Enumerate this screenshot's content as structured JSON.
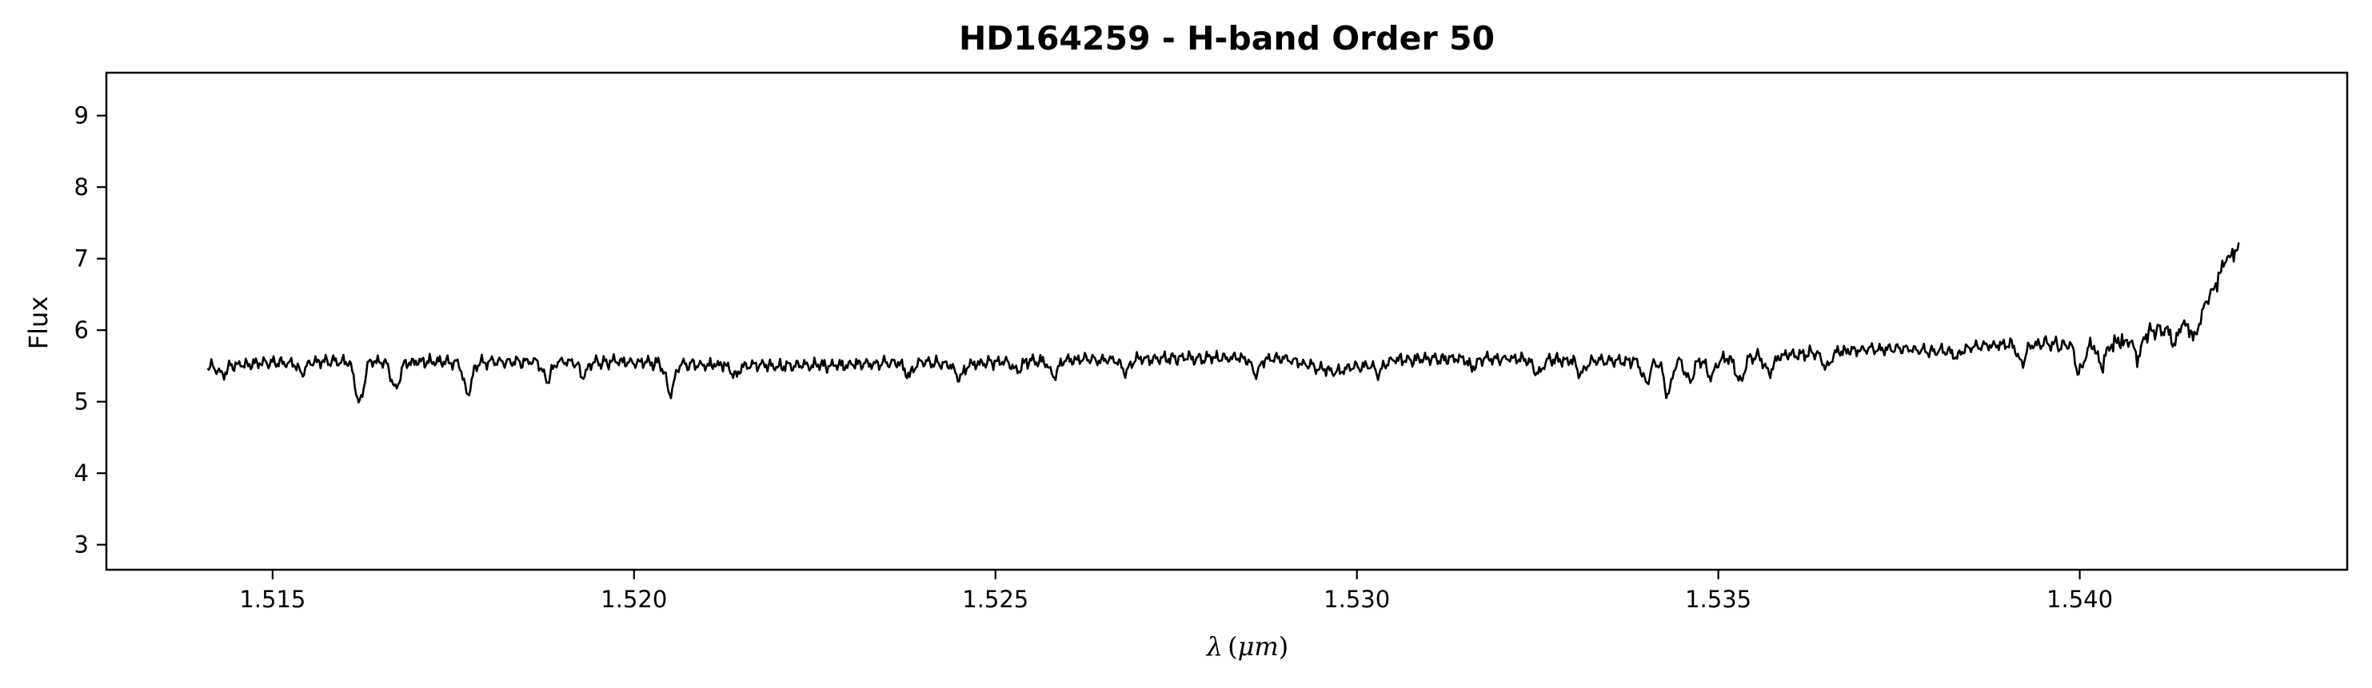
{
  "chart_data": {
    "type": "line",
    "title": "HD164259 - H-band Order 50",
    "xlabel": "λ (μm)",
    "xlabel_parts": {
      "symbol": "λ",
      "open": "(",
      "unit": "μm",
      "close": ")"
    },
    "ylabel": "Flux",
    "xlim": [
      1.5127,
      1.5437
    ],
    "ylim": [
      2.65,
      9.6
    ],
    "x_ticks": [
      1.515,
      1.52,
      1.525,
      1.53,
      1.535,
      1.54
    ],
    "x_tick_labels": [
      "1.515",
      "1.520",
      "1.525",
      "1.530",
      "1.535",
      "1.540"
    ],
    "y_ticks": [
      3,
      4,
      5,
      6,
      7,
      8,
      9
    ],
    "y_tick_labels": [
      "3",
      "4",
      "5",
      "6",
      "7",
      "8",
      "9"
    ],
    "grid": false,
    "line_color": "#000000",
    "series": [
      {
        "x_start": 1.5141,
        "x_end": 1.5422,
        "continuum": [
          [
            1.5141,
            5.48
          ],
          [
            1.515,
            5.55
          ],
          [
            1.516,
            5.56
          ],
          [
            1.517,
            5.56
          ],
          [
            1.518,
            5.55
          ],
          [
            1.519,
            5.56
          ],
          [
            1.52,
            5.55
          ],
          [
            1.521,
            5.52
          ],
          [
            1.522,
            5.5
          ],
          [
            1.523,
            5.52
          ],
          [
            1.524,
            5.56
          ],
          [
            1.5245,
            5.5
          ],
          [
            1.525,
            5.55
          ],
          [
            1.526,
            5.58
          ],
          [
            1.527,
            5.6
          ],
          [
            1.528,
            5.62
          ],
          [
            1.529,
            5.6
          ],
          [
            1.5297,
            5.42
          ],
          [
            1.5305,
            5.58
          ],
          [
            1.531,
            5.6
          ],
          [
            1.532,
            5.6
          ],
          [
            1.533,
            5.58
          ],
          [
            1.534,
            5.56
          ],
          [
            1.535,
            5.6
          ],
          [
            1.536,
            5.66
          ],
          [
            1.537,
            5.72
          ],
          [
            1.5375,
            5.75
          ],
          [
            1.538,
            5.7
          ],
          [
            1.5385,
            5.76
          ],
          [
            1.539,
            5.8
          ],
          [
            1.5395,
            5.8
          ],
          [
            1.54,
            5.8
          ],
          [
            1.5405,
            5.82
          ],
          [
            1.541,
            5.98
          ],
          [
            1.5415,
            6.15
          ],
          [
            1.5418,
            6.45
          ],
          [
            1.542,
            6.95
          ],
          [
            1.5422,
            7.15
          ]
        ],
        "absorption_lines": [
          [
            1.5143,
            0.12
          ],
          [
            1.5154,
            0.15
          ],
          [
            1.5162,
            0.6
          ],
          [
            1.5167,
            0.4
          ],
          [
            1.5177,
            0.45
          ],
          [
            1.5188,
            0.25
          ],
          [
            1.5193,
            0.2
          ],
          [
            1.5205,
            0.4
          ],
          [
            1.5214,
            0.15
          ],
          [
            1.5238,
            0.2
          ],
          [
            1.5245,
            0.18
          ],
          [
            1.5253,
            0.12
          ],
          [
            1.5258,
            0.22
          ],
          [
            1.5268,
            0.18
          ],
          [
            1.5286,
            0.22
          ],
          [
            1.5303,
            0.15
          ],
          [
            1.5316,
            0.12
          ],
          [
            1.5325,
            0.2
          ],
          [
            1.5331,
            0.2
          ],
          [
            1.534,
            0.28
          ],
          [
            1.5343,
            0.45
          ],
          [
            1.5346,
            0.3
          ],
          [
            1.5349,
            0.25
          ],
          [
            1.5353,
            0.35
          ],
          [
            1.5357,
            0.25
          ],
          [
            1.5365,
            0.2
          ],
          [
            1.5383,
            0.12
          ],
          [
            1.5392,
            0.25
          ],
          [
            1.54,
            0.4
          ],
          [
            1.5403,
            0.28
          ],
          [
            1.5408,
            0.3
          ],
          [
            1.5413,
            0.25
          ],
          [
            1.5416,
            0.4
          ]
        ]
      }
    ]
  }
}
